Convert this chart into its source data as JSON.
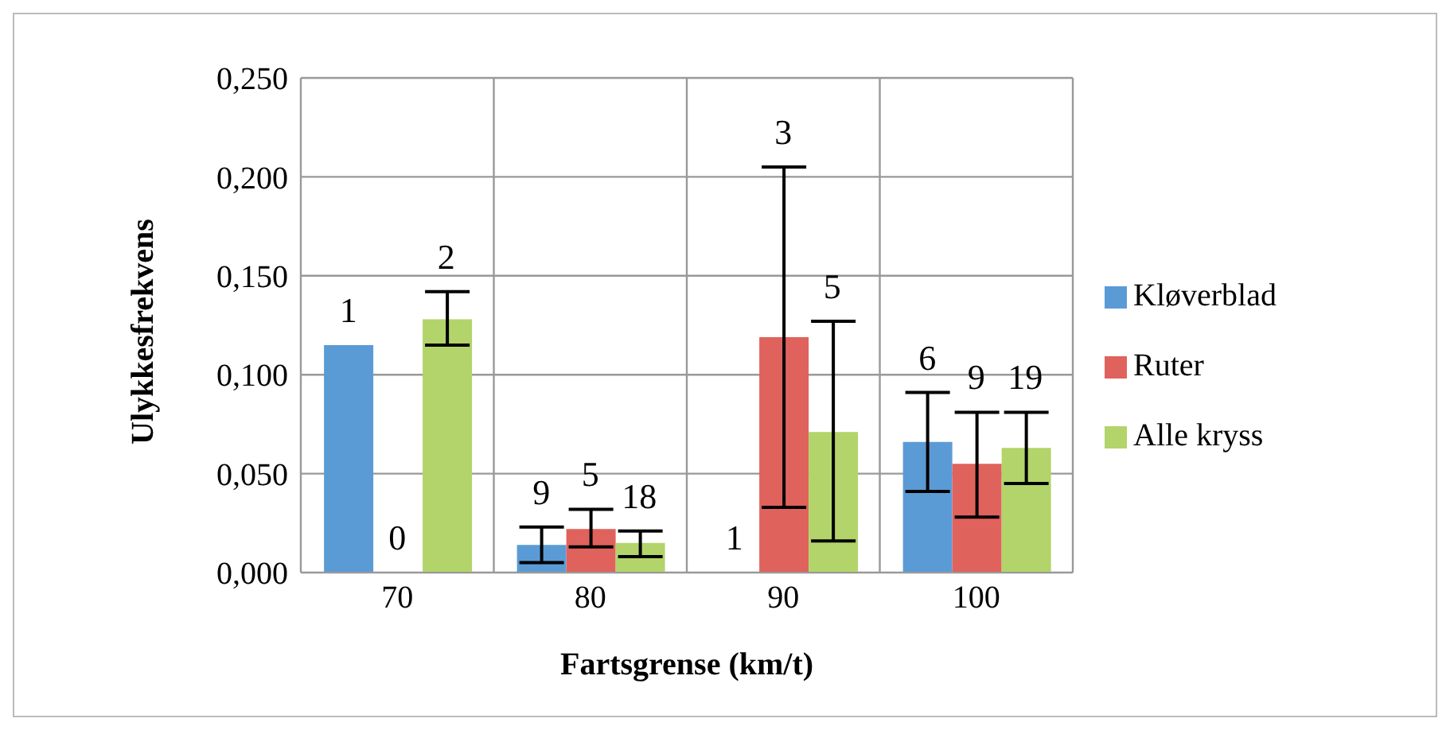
{
  "chart_data": {
    "type": "bar",
    "xlabel": "Fartsgrense (km/t)",
    "ylabel": "Ulykkesfrekvens",
    "categories": [
      "70",
      "80",
      "90",
      "100"
    ],
    "series": [
      {
        "name": "Kløverblad",
        "color": "#5b9bd5",
        "values": [
          0.115,
          0.014,
          0,
          0.066
        ],
        "errors": [
          0,
          [
            0.005,
            0.023
          ],
          null,
          [
            0.041,
            0.091
          ]
        ]
      },
      {
        "name": "Ruter",
        "color": "#e0625c",
        "values": [
          0,
          0.022,
          0.119,
          0.055
        ],
        "errors": [
          null,
          [
            0.013,
            0.032
          ],
          [
            0.033,
            0.205
          ],
          [
            0.028,
            0.081
          ]
        ]
      },
      {
        "name": "Alle kryss",
        "color": "#b2d46a",
        "values": [
          0.128,
          0.015,
          0.071,
          0.063
        ],
        "errors": [
          [
            0.115,
            0.142
          ],
          [
            0.008,
            0.021
          ],
          [
            0.016,
            0.127
          ],
          [
            0.045,
            0.081
          ]
        ]
      }
    ],
    "annotations": [
      "1",
      "0",
      "2",
      "9",
      "5",
      "18",
      "1",
      "3",
      "5",
      "6",
      "9",
      "19"
    ],
    "ylim": [
      0,
      0.25
    ],
    "yticks": [
      {
        "value": 0,
        "label": "0,000"
      },
      {
        "value": 0.05,
        "label": "0,050"
      },
      {
        "value": 0.1,
        "label": "0,100"
      },
      {
        "value": 0.15,
        "label": "0,150"
      },
      {
        "value": 0.2,
        "label": "0,200"
      },
      {
        "value": 0.25,
        "label": "0,250"
      }
    ],
    "grid": true,
    "legend": "right"
  }
}
